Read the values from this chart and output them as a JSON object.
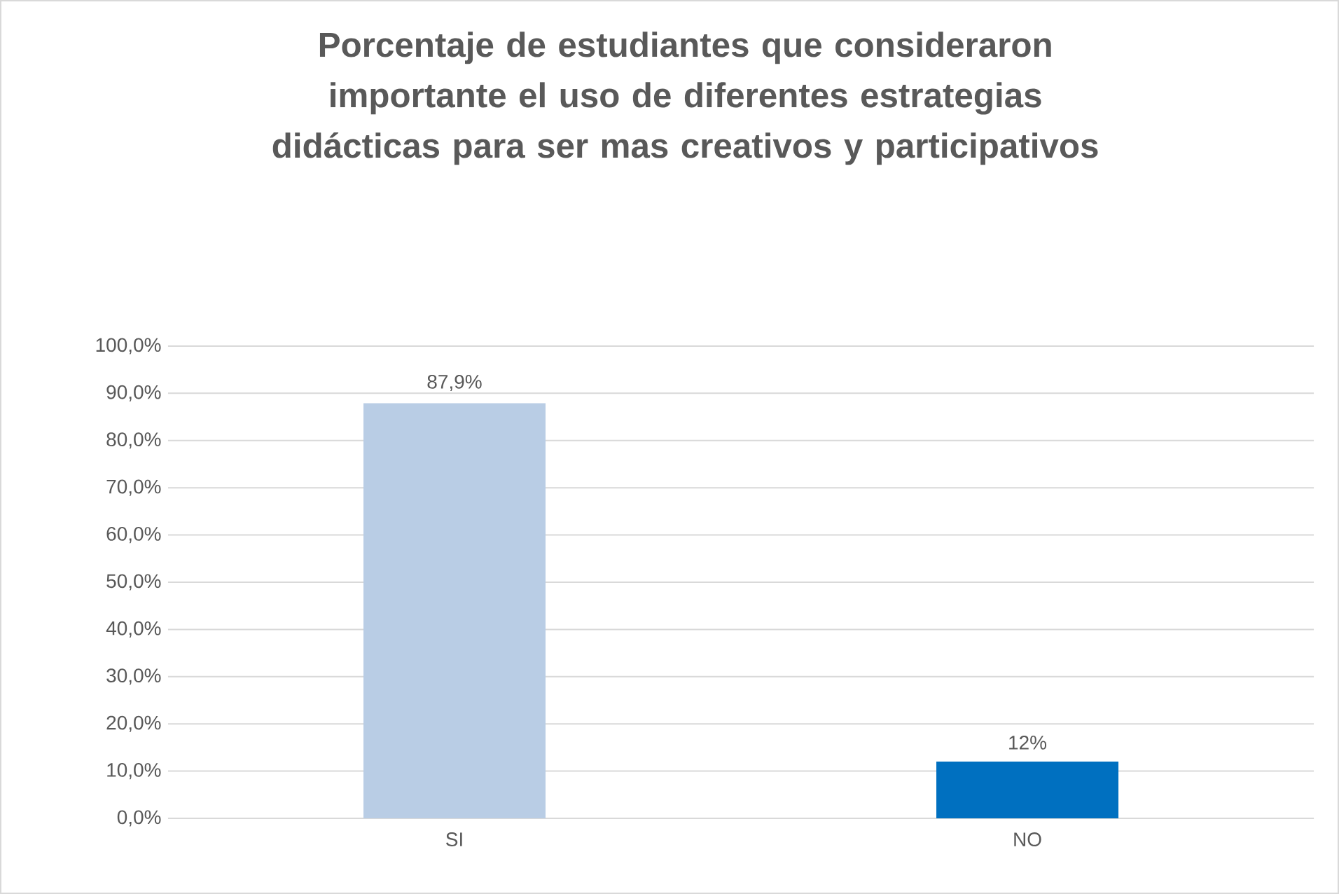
{
  "chart_data": {
    "type": "bar",
    "title": "Porcentaje de estudiantes que consideraron importante el uso de diferentes estrategias didácticas para ser mas creativos y participativos",
    "categories": [
      "SI",
      "NO"
    ],
    "values": [
      87.9,
      12
    ],
    "colors": [
      "#b9cde5",
      "#0070c0"
    ],
    "value_labels": [
      "87,9%",
      "12%"
    ],
    "ylim": [
      0,
      100
    ],
    "yticks": [
      {
        "value": 0,
        "label": "0,0%"
      },
      {
        "value": 10,
        "label": "10,0%"
      },
      {
        "value": 20,
        "label": "20,0%"
      },
      {
        "value": 30,
        "label": "30,0%"
      },
      {
        "value": 40,
        "label": "40,0%"
      },
      {
        "value": 50,
        "label": "50,0%"
      },
      {
        "value": 60,
        "label": "60,0%"
      },
      {
        "value": 70,
        "label": "70,0%"
      },
      {
        "value": 80,
        "label": "80,0%"
      },
      {
        "value": 90,
        "label": "90,0%"
      },
      {
        "value": 100,
        "label": "100,0%"
      }
    ],
    "grid": "y"
  }
}
